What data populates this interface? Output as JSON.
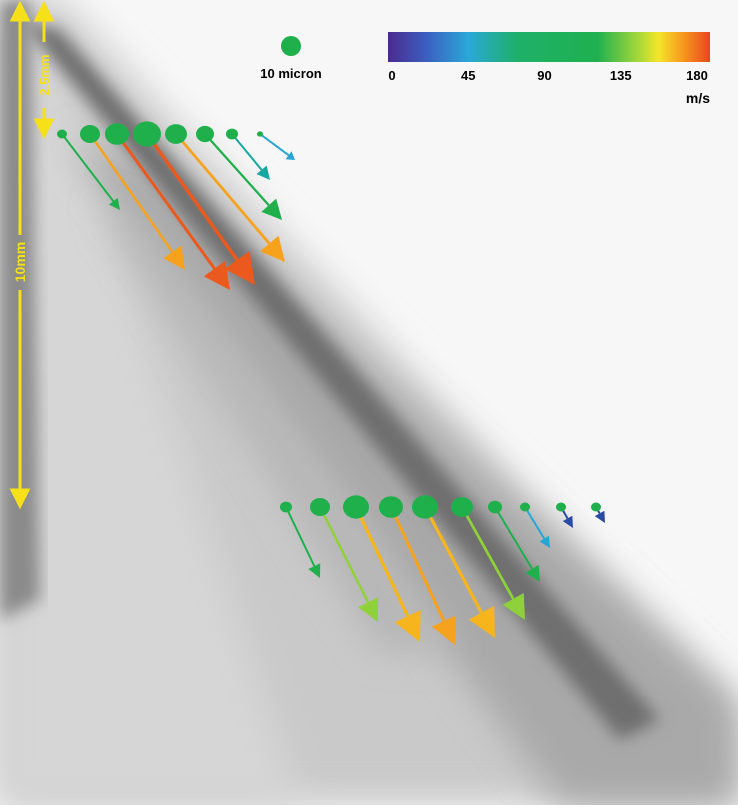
{
  "scale_legend": {
    "label": "10 micron"
  },
  "colorbar": {
    "ticks": [
      0,
      45,
      90,
      135,
      180
    ],
    "unit": "m/s"
  },
  "scale_bars": {
    "short": "2.5mm",
    "long": "10mm"
  }
}
